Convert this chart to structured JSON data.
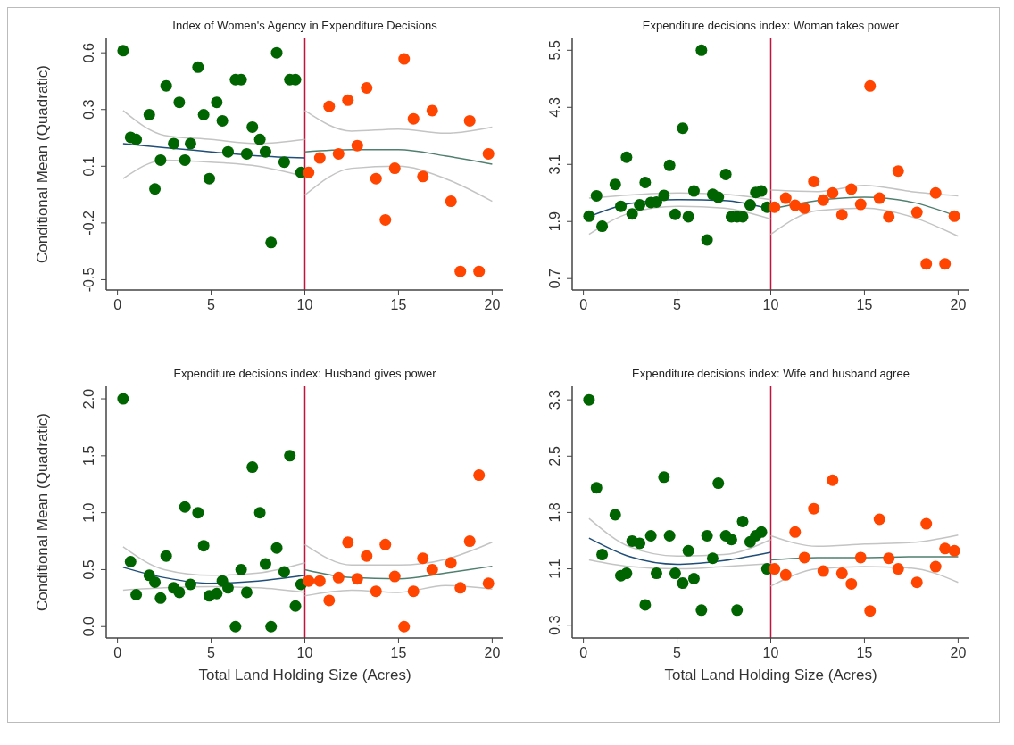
{
  "chart_data": [
    {
      "type": "scatter",
      "title": "Index of Women's Agency in Expenditure Decisions",
      "ylabel": "Conditional Mean (Quadratic)",
      "xlim": [
        -0.6,
        20.6
      ],
      "xticks": [
        0,
        5,
        10,
        15,
        20
      ],
      "ylim": [
        -0.55,
        0.67
      ],
      "yticks": [
        -0.5,
        {
          "value": -0.225,
          "label": "-0.2"
        },
        {
          "value": 0.05,
          "label": "0.1"
        },
        {
          "value": 0.325,
          "label": "0.3"
        },
        0.6
      ],
      "ref_lines": [
        {
          "axis": "x",
          "value": 10,
          "color": "#c0143c"
        }
      ],
      "series": [
        {
          "marker": "circle",
          "color": "#006400",
          "x": [
            0.3,
            0.7,
            1.0,
            1.7,
            2.0,
            2.3,
            2.6,
            3.0,
            3.3,
            3.6,
            3.9,
            4.3,
            4.6,
            4.9,
            5.3,
            5.6,
            5.9,
            6.3,
            6.6,
            6.9,
            7.2,
            7.6,
            7.9,
            8.2,
            8.5,
            8.9,
            9.2,
            9.5,
            9.8
          ],
          "values": [
            0.61,
            0.19,
            0.18,
            0.3,
            -0.06,
            0.08,
            0.44,
            0.16,
            0.36,
            0.08,
            0.16,
            0.53,
            0.3,
            -0.01,
            0.36,
            0.27,
            0.12,
            0.47,
            0.47,
            0.11,
            0.24,
            0.18,
            0.12,
            -0.32,
            0.6,
            0.07,
            0.47,
            0.47,
            0.02
          ]
        },
        {
          "marker": "circle",
          "color": "#ff4500",
          "x": [
            10.2,
            10.8,
            11.3,
            11.8,
            12.3,
            12.8,
            13.3,
            13.8,
            14.3,
            14.8,
            15.3,
            15.8,
            16.3,
            16.8,
            17.8,
            18.3,
            18.8,
            19.3,
            19.8
          ],
          "values": [
            0.02,
            0.09,
            0.34,
            0.11,
            0.37,
            0.15,
            0.43,
            -0.01,
            -0.21,
            0.04,
            0.57,
            0.28,
            0.0,
            0.32,
            -0.12,
            -0.46,
            0.27,
            -0.46,
            0.11
          ]
        },
        {
          "type": "line",
          "color": "#c4c4c4",
          "x": [
            0.3,
            2.5,
            5,
            7.5,
            10
          ],
          "values": [
            -0.01,
            0.08,
            0.07,
            0.05,
            0.0
          ]
        },
        {
          "type": "line",
          "color": "#c4c4c4",
          "x": [
            0.3,
            2.5,
            5,
            7.5,
            10
          ],
          "values": [
            0.32,
            0.2,
            0.18,
            0.16,
            0.18
          ]
        },
        {
          "type": "line",
          "color": "#c4c4c4",
          "x": [
            10,
            12.5,
            15,
            17.5,
            20
          ],
          "values": [
            -0.09,
            0.04,
            0.05,
            -0.01,
            -0.12
          ]
        },
        {
          "type": "line",
          "color": "#c4c4c4",
          "x": [
            10,
            12.5,
            15,
            17.5,
            20
          ],
          "values": [
            0.32,
            0.22,
            0.23,
            0.21,
            0.24
          ]
        },
        {
          "type": "line",
          "color": "#1f4e79",
          "x": [
            0.3,
            2.5,
            5,
            7.5,
            10
          ],
          "values": [
            0.16,
            0.14,
            0.12,
            0.1,
            0.09
          ]
        },
        {
          "type": "line",
          "color": "#4f7f6f",
          "x": [
            10,
            12.5,
            15,
            17.5,
            20
          ],
          "values": [
            0.12,
            0.13,
            0.13,
            0.1,
            0.06
          ]
        }
      ]
    },
    {
      "type": "scatter",
      "title": "Expenditure decisions index: Woman takes power",
      "xlim": [
        -0.6,
        20.6
      ],
      "xticks": [
        0,
        5,
        10,
        15,
        20
      ],
      "ylim": [
        0.46,
        5.75
      ],
      "yticks": [
        0.7,
        1.9,
        3.1,
        4.3,
        5.5
      ],
      "ref_lines": [
        {
          "axis": "x",
          "value": 10,
          "color": "#c0143c"
        }
      ],
      "series": [
        {
          "marker": "circle",
          "color": "#006400",
          "x": [
            0.3,
            0.7,
            1.0,
            1.7,
            2.0,
            2.3,
            2.6,
            3.0,
            3.3,
            3.6,
            3.9,
            4.3,
            4.6,
            4.9,
            5.3,
            5.6,
            5.9,
            6.3,
            6.6,
            6.9,
            7.2,
            7.6,
            7.9,
            8.2,
            8.5,
            8.9,
            9.2,
            9.5,
            9.8
          ],
          "values": [
            2.01,
            2.44,
            1.8,
            2.68,
            2.22,
            3.25,
            2.06,
            2.25,
            2.72,
            2.3,
            2.31,
            2.45,
            3.08,
            2.05,
            3.86,
            2.0,
            2.54,
            5.5,
            1.51,
            2.47,
            2.41,
            2.89,
            2.0,
            2.0,
            2.0,
            2.25,
            2.51,
            2.54,
            2.2
          ]
        },
        {
          "marker": "circle",
          "color": "#ff4500",
          "x": [
            10.2,
            10.8,
            11.3,
            11.8,
            12.3,
            12.8,
            13.3,
            13.8,
            14.3,
            14.8,
            15.3,
            15.8,
            16.3,
            16.8,
            17.8,
            18.3,
            18.8,
            19.3,
            19.8
          ],
          "values": [
            2.2,
            2.39,
            2.24,
            2.18,
            2.74,
            2.35,
            2.5,
            2.04,
            2.58,
            2.26,
            4.75,
            2.39,
            2.0,
            2.96,
            2.09,
            1.01,
            2.5,
            1.01,
            2.01
          ]
        },
        {
          "type": "line",
          "color": "#c4c4c4",
          "x": [
            0.3,
            2.5,
            5,
            7.5,
            10
          ],
          "values": [
            1.63,
            2.08,
            2.22,
            2.18,
            1.95
          ]
        },
        {
          "type": "line",
          "color": "#c4c4c4",
          "x": [
            0.3,
            2.5,
            5,
            7.5,
            10
          ],
          "values": [
            2.39,
            2.46,
            2.5,
            2.47,
            2.36
          ]
        },
        {
          "type": "line",
          "color": "#c4c4c4",
          "x": [
            10,
            12.5,
            15,
            17.5,
            20
          ],
          "values": [
            1.63,
            2.13,
            2.18,
            2.0,
            1.59
          ]
        },
        {
          "type": "line",
          "color": "#c4c4c4",
          "x": [
            10,
            12.5,
            15,
            17.5,
            20
          ],
          "values": [
            2.56,
            2.53,
            2.66,
            2.53,
            2.44
          ]
        },
        {
          "type": "line",
          "color": "#1f4e79",
          "x": [
            0.3,
            2.5,
            5,
            7.5,
            10
          ],
          "values": [
            2.0,
            2.28,
            2.36,
            2.34,
            2.16
          ]
        },
        {
          "type": "line",
          "color": "#4f7f6f",
          "x": [
            10,
            12.5,
            15,
            17.5,
            20
          ],
          "values": [
            2.16,
            2.34,
            2.41,
            2.31,
            2.0
          ]
        }
      ]
    },
    {
      "type": "scatter",
      "title": "Expenditure decisions index: Husband gives power",
      "ylabel": "Conditional Mean (Quadratic)",
      "xlabel": "Total Land Holding Size (Acres)",
      "xlim": [
        -0.6,
        20.6
      ],
      "xticks": [
        0,
        5,
        10,
        15,
        20
      ],
      "ylim": [
        -0.1,
        2.11
      ],
      "yticks": [
        {
          "value": 0,
          "label": "0.0"
        },
        {
          "value": 0.5,
          "label": "0.5"
        },
        {
          "value": 1,
          "label": "1.0"
        },
        {
          "value": 1.5,
          "label": "1.5"
        },
        {
          "value": 2,
          "label": "2.0"
        }
      ],
      "ref_lines": [
        {
          "axis": "x",
          "value": 10,
          "color": "#c0143c"
        }
      ],
      "series": [
        {
          "marker": "circle",
          "color": "#006400",
          "x": [
            0.3,
            0.7,
            1.0,
            1.7,
            2.0,
            2.3,
            2.6,
            3.0,
            3.3,
            3.6,
            3.9,
            4.3,
            4.6,
            4.9,
            5.3,
            5.6,
            5.9,
            6.3,
            6.6,
            6.9,
            7.2,
            7.6,
            7.9,
            8.2,
            8.5,
            8.9,
            9.2,
            9.5,
            9.8
          ],
          "values": [
            2.0,
            0.57,
            0.28,
            0.45,
            0.39,
            0.25,
            0.62,
            0.34,
            0.3,
            1.05,
            0.37,
            1.0,
            0.71,
            0.27,
            0.29,
            0.4,
            0.34,
            0.0,
            0.5,
            0.3,
            1.4,
            1.0,
            0.55,
            0.0,
            0.69,
            0.48,
            1.5,
            0.18,
            0.37
          ]
        },
        {
          "marker": "circle",
          "color": "#ff4500",
          "x": [
            10.2,
            10.8,
            11.3,
            11.8,
            12.3,
            12.8,
            13.3,
            13.8,
            14.3,
            14.8,
            15.3,
            15.8,
            16.3,
            16.8,
            17.8,
            18.3,
            18.8,
            19.3,
            19.8
          ],
          "values": [
            0.4,
            0.4,
            0.23,
            0.43,
            0.74,
            0.42,
            0.62,
            0.31,
            0.72,
            0.44,
            0.0,
            0.31,
            0.6,
            0.5,
            0.56,
            0.34,
            0.75,
            1.33,
            0.38
          ]
        },
        {
          "type": "line",
          "color": "#c4c4c4",
          "x": [
            0.3,
            2.5,
            5,
            7.5,
            10
          ],
          "values": [
            0.32,
            0.34,
            0.35,
            0.34,
            0.3
          ]
        },
        {
          "type": "line",
          "color": "#c4c4c4",
          "x": [
            0.3,
            2.5,
            5,
            7.5,
            10
          ],
          "values": [
            0.7,
            0.5,
            0.45,
            0.47,
            0.56
          ]
        },
        {
          "type": "line",
          "color": "#c4c4c4",
          "x": [
            10,
            12.5,
            15,
            17.5,
            20
          ],
          "values": [
            0.27,
            0.32,
            0.3,
            0.36,
            0.33
          ]
        },
        {
          "type": "line",
          "color": "#c4c4c4",
          "x": [
            10,
            12.5,
            15,
            17.5,
            20
          ],
          "values": [
            0.72,
            0.54,
            0.54,
            0.59,
            0.74
          ]
        },
        {
          "type": "line",
          "color": "#1f4e79",
          "x": [
            0.3,
            2.5,
            5,
            7.5,
            10
          ],
          "values": [
            0.52,
            0.43,
            0.38,
            0.4,
            0.45
          ]
        },
        {
          "type": "line",
          "color": "#4f7f6f",
          "x": [
            10,
            12.5,
            15,
            17.5,
            20
          ],
          "values": [
            0.5,
            0.43,
            0.42,
            0.47,
            0.53
          ]
        }
      ]
    },
    {
      "type": "scatter",
      "title": "Expenditure decisions index: Wife and husband agree",
      "xlabel": "Total Land Holding Size (Acres)",
      "xlim": [
        -0.6,
        20.6
      ],
      "xticks": [
        0,
        5,
        10,
        15,
        20
      ],
      "ylim": [
        0.13,
        3.48
      ],
      "yticks": [
        0.3,
        {
          "value": 1.05,
          "label": "1.1"
        },
        1.8,
        {
          "value": 2.55,
          "label": "2.5"
        },
        3.3
      ],
      "ref_lines": [
        {
          "axis": "x",
          "value": 10,
          "color": "#c0143c"
        }
      ],
      "series": [
        {
          "marker": "circle",
          "color": "#006400",
          "x": [
            0.3,
            0.7,
            1.0,
            1.7,
            2.0,
            2.3,
            2.6,
            3.0,
            3.3,
            3.6,
            3.9,
            4.3,
            4.6,
            4.9,
            5.3,
            5.6,
            5.9,
            6.3,
            6.6,
            6.9,
            7.2,
            7.6,
            7.9,
            8.2,
            8.5,
            8.9,
            9.2,
            9.5,
            9.8
          ],
          "values": [
            3.3,
            2.13,
            1.24,
            1.77,
            0.96,
            0.99,
            1.42,
            1.39,
            0.57,
            1.49,
            0.99,
            2.27,
            1.49,
            0.99,
            0.86,
            1.29,
            0.92,
            0.5,
            1.49,
            1.19,
            2.19,
            1.49,
            1.44,
            0.5,
            1.68,
            1.41,
            1.49,
            1.54,
            1.05
          ]
        },
        {
          "marker": "circle",
          "color": "#ff4500",
          "x": [
            10.2,
            10.8,
            11.3,
            11.8,
            12.3,
            12.8,
            13.3,
            13.8,
            14.3,
            14.8,
            15.3,
            15.8,
            16.3,
            16.8,
            17.8,
            18.3,
            18.8,
            19.3,
            19.8
          ],
          "values": [
            1.05,
            0.97,
            1.54,
            1.2,
            1.85,
            1.02,
            2.23,
            0.99,
            0.85,
            1.2,
            0.49,
            1.71,
            1.19,
            1.05,
            0.87,
            1.65,
            1.08,
            1.32,
            1.29
          ]
        },
        {
          "type": "line",
          "color": "#c4c4c4",
          "x": [
            0.3,
            2.5,
            5,
            7.5,
            10
          ],
          "values": [
            1.17,
            1.08,
            1.05,
            1.08,
            1.12
          ]
        },
        {
          "type": "line",
          "color": "#c4c4c4",
          "x": [
            0.3,
            2.5,
            5,
            7.5,
            10
          ],
          "values": [
            1.72,
            1.34,
            1.22,
            1.24,
            1.44
          ]
        },
        {
          "type": "line",
          "color": "#c4c4c4",
          "x": [
            10,
            12.5,
            15,
            17.5,
            20
          ],
          "values": [
            0.82,
            1.05,
            1.08,
            1.06,
            0.87
          ]
        },
        {
          "type": "line",
          "color": "#c4c4c4",
          "x": [
            10,
            12.5,
            15,
            17.5,
            20
          ],
          "values": [
            1.49,
            1.35,
            1.38,
            1.4,
            1.5
          ]
        },
        {
          "type": "line",
          "color": "#1f4e79",
          "x": [
            0.3,
            2.5,
            5,
            7.5,
            10
          ],
          "values": [
            1.46,
            1.21,
            1.11,
            1.16,
            1.27
          ]
        },
        {
          "type": "line",
          "color": "#4f7f6f",
          "x": [
            10,
            12.5,
            15,
            17.5,
            20
          ],
          "values": [
            1.17,
            1.2,
            1.2,
            1.21,
            1.21
          ]
        }
      ]
    }
  ]
}
